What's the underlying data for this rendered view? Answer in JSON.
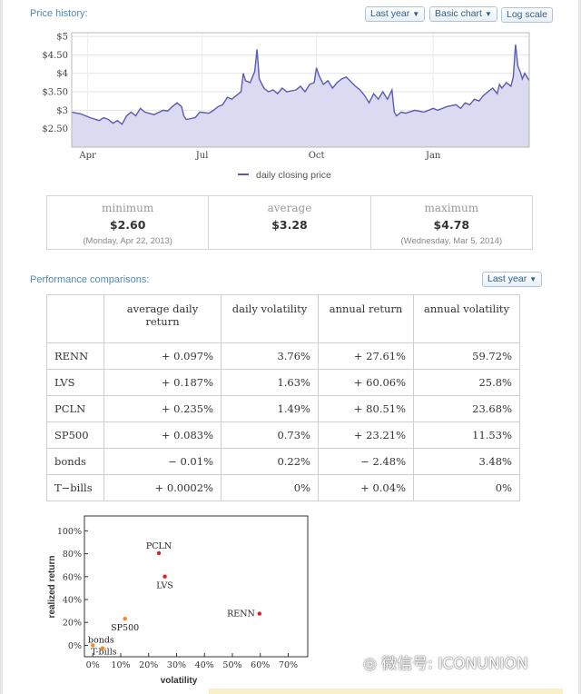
{
  "price_history": {
    "title": "Price history:",
    "range_label": "Last year",
    "chart_type_label": "Basic chart",
    "log_scale_label": "Log scale",
    "legend_label": "daily closing price"
  },
  "chart_data": [
    {
      "type": "line",
      "y_ticks": [
        2.5,
        3,
        3.5,
        4,
        4.5,
        5
      ],
      "y_tick_labels": [
        "$2.50",
        "$3",
        "$3.50",
        "$4",
        "$4.50",
        "$5"
      ],
      "ylim": [
        2.0,
        5.1
      ],
      "x_tick_labels": [
        {
          "label": "Apr",
          "t": 0.035
        },
        {
          "label": "Jul",
          "t": 0.285
        },
        {
          "label": "Oct",
          "t": 0.535
        },
        {
          "label": "Jan",
          "t": 0.79
        }
      ],
      "series": [
        {
          "name": "daily closing price",
          "points": [
            [
              0.0,
              2.95
            ],
            [
              0.02,
              2.9
            ],
            [
              0.04,
              2.8
            ],
            [
              0.06,
              2.72
            ],
            [
              0.07,
              2.8
            ],
            [
              0.08,
              2.75
            ],
            [
              0.09,
              2.65
            ],
            [
              0.1,
              2.72
            ],
            [
              0.11,
              2.62
            ],
            [
              0.12,
              2.85
            ],
            [
              0.13,
              2.95
            ],
            [
              0.14,
              2.85
            ],
            [
              0.15,
              3.05
            ],
            [
              0.16,
              2.95
            ],
            [
              0.18,
              2.88
            ],
            [
              0.2,
              3.0
            ],
            [
              0.21,
              2.98
            ],
            [
              0.22,
              3.1
            ],
            [
              0.23,
              3.2
            ],
            [
              0.24,
              3.1
            ],
            [
              0.245,
              2.85
            ],
            [
              0.25,
              2.75
            ],
            [
              0.27,
              2.8
            ],
            [
              0.28,
              2.95
            ],
            [
              0.3,
              2.92
            ],
            [
              0.31,
              3.0
            ],
            [
              0.32,
              3.1
            ],
            [
              0.33,
              3.15
            ],
            [
              0.34,
              3.35
            ],
            [
              0.35,
              3.3
            ],
            [
              0.36,
              3.4
            ],
            [
              0.37,
              3.5
            ],
            [
              0.375,
              4.0
            ],
            [
              0.38,
              3.8
            ],
            [
              0.39,
              3.75
            ],
            [
              0.4,
              4.05
            ],
            [
              0.405,
              4.65
            ],
            [
              0.41,
              3.85
            ],
            [
              0.42,
              3.6
            ],
            [
              0.43,
              3.5
            ],
            [
              0.44,
              3.55
            ],
            [
              0.45,
              3.45
            ],
            [
              0.46,
              3.6
            ],
            [
              0.47,
              3.5
            ],
            [
              0.49,
              3.55
            ],
            [
              0.5,
              3.65
            ],
            [
              0.51,
              3.5
            ],
            [
              0.52,
              3.7
            ],
            [
              0.53,
              3.75
            ],
            [
              0.535,
              4.15
            ],
            [
              0.54,
              3.95
            ],
            [
              0.55,
              3.7
            ],
            [
              0.56,
              3.8
            ],
            [
              0.57,
              3.6
            ],
            [
              0.58,
              3.75
            ],
            [
              0.59,
              3.85
            ],
            [
              0.6,
              3.9
            ],
            [
              0.62,
              3.65
            ],
            [
              0.63,
              3.55
            ],
            [
              0.64,
              3.4
            ],
            [
              0.65,
              3.2
            ],
            [
              0.66,
              3.45
            ],
            [
              0.67,
              3.3
            ],
            [
              0.68,
              3.5
            ],
            [
              0.69,
              3.3
            ],
            [
              0.7,
              3.55
            ],
            [
              0.705,
              2.95
            ],
            [
              0.71,
              2.85
            ],
            [
              0.72,
              2.95
            ],
            [
              0.73,
              2.92
            ],
            [
              0.75,
              3.0
            ],
            [
              0.77,
              2.95
            ],
            [
              0.79,
              3.05
            ],
            [
              0.8,
              3.0
            ],
            [
              0.82,
              3.1
            ],
            [
              0.84,
              3.15
            ],
            [
              0.85,
              3.05
            ],
            [
              0.86,
              3.2
            ],
            [
              0.87,
              3.15
            ],
            [
              0.88,
              3.3
            ],
            [
              0.89,
              3.25
            ],
            [
              0.9,
              3.4
            ],
            [
              0.91,
              3.5
            ],
            [
              0.92,
              3.6
            ],
            [
              0.93,
              3.45
            ],
            [
              0.935,
              3.7
            ],
            [
              0.94,
              3.6
            ],
            [
              0.95,
              3.75
            ],
            [
              0.96,
              3.65
            ],
            [
              0.965,
              3.9
            ],
            [
              0.97,
              4.78
            ],
            [
              0.975,
              4.2
            ],
            [
              0.98,
              4.05
            ],
            [
              0.985,
              3.85
            ],
            [
              0.99,
              4.0
            ],
            [
              1.0,
              3.8
            ]
          ]
        }
      ]
    },
    {
      "type": "scatter",
      "xlabel": "volatility",
      "ylabel": "realized return",
      "x_ticks": [
        0,
        10,
        20,
        30,
        40,
        50,
        60,
        70
      ],
      "x_tick_labels": [
        "0%",
        "10%",
        "20%",
        "30%",
        "40%",
        "50%",
        "60%",
        "70%"
      ],
      "y_ticks": [
        0,
        20,
        40,
        60,
        80,
        100
      ],
      "y_tick_labels": [
        "0%",
        "20%",
        "40%",
        "60%",
        "80%",
        "100%"
      ],
      "xlim": [
        -3,
        77
      ],
      "ylim": [
        -10,
        113
      ],
      "points": [
        {
          "label": "RENN",
          "x": 59.72,
          "y": 27.61,
          "color": "#e02020",
          "label_side": "left"
        },
        {
          "label": "LVS",
          "x": 25.8,
          "y": 60.06,
          "color": "#e02020",
          "label_side": "below"
        },
        {
          "label": "PCLN",
          "x": 23.68,
          "y": 80.51,
          "color": "#e02020",
          "label_side": "above"
        },
        {
          "label": "SP500",
          "x": 11.53,
          "y": 23.21,
          "color": "#f08a1c",
          "label_side": "below"
        },
        {
          "label": "bonds",
          "x": 3.48,
          "y": -2.48,
          "color": "#f08a1c",
          "label_side": "above-right"
        },
        {
          "label": "T-bills",
          "x": 0,
          "y": 0.04,
          "color": "#f08a1c",
          "label_side": "below-right"
        }
      ]
    }
  ],
  "stats": [
    {
      "label": "minimum",
      "value": "$2.60",
      "date": "(Monday, Apr 22, 2013)"
    },
    {
      "label": "average",
      "value": "$3.28",
      "date": ""
    },
    {
      "label": "maximum",
      "value": "$4.78",
      "date": "(Wednesday, Mar 5, 2014)"
    }
  ],
  "performance": {
    "title": "Performance comparisons:",
    "range_label": "Last year",
    "headers": [
      "average daily return",
      "daily volatility",
      "annual return",
      "annual volatility"
    ],
    "rows": [
      {
        "name": "RENN",
        "avg": "+ 0.097%",
        "dvol": "3.76%",
        "ret": "+ 27.61%",
        "avol": "59.72%"
      },
      {
        "name": "LVS",
        "avg": "+ 0.187%",
        "dvol": "1.63%",
        "ret": "+ 60.06%",
        "avol": "25.8%"
      },
      {
        "name": "PCLN",
        "avg": "+ 0.235%",
        "dvol": "1.49%",
        "ret": "+ 80.51%",
        "avol": "23.68%"
      },
      {
        "name": "SP500",
        "avg": "+ 0.083%",
        "dvol": "0.73%",
        "ret": "+ 23.21%",
        "avol": "11.53%"
      },
      {
        "name": "bonds",
        "avg": "− 0.01%",
        "dvol": "0.22%",
        "ret": "− 2.48%",
        "avol": "3.48%"
      },
      {
        "name": "T−bills",
        "avg": "+ 0.0002%",
        "dvol": "0%",
        "ret": "+ 0.04%",
        "avol": "0%"
      }
    ]
  },
  "watermark": {
    "text": "微信号: ICONUNION",
    "icon": "wechat-icon"
  },
  "colors": {
    "line": "#5a5ab8",
    "fill": "#dadaf0",
    "accent": "#4f8ab8",
    "red": "#e02020",
    "orange": "#f08a1c"
  }
}
